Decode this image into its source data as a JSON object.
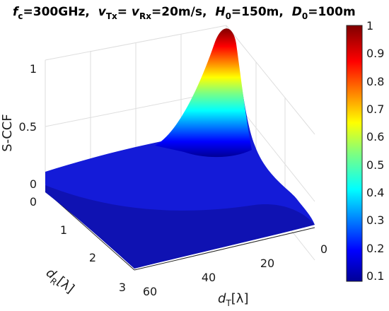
{
  "chart_data": {
    "type": "surface",
    "title": {
      "fc_sym": "f",
      "fc_sub": "c",
      "fc_val": "=300GHz,",
      "v_sym": "v",
      "vtx_sub": "Tx",
      "eq": "= ",
      "vrx_sub": "Rx",
      "v_val": "=20m/s,",
      "h_sym": "H",
      "h_sub": "0",
      "h_val": "=150m,",
      "d_sym": "D",
      "d_sub": "0",
      "d_val": "=100m"
    },
    "xlabel": {
      "sym": "d",
      "sub": "T",
      "unit": "[λ]"
    },
    "ylabel": {
      "sym": "d",
      "sub": "R",
      "unit": "[λ]"
    },
    "zlabel": "S-CCF",
    "x_ticks": [
      "0",
      "20",
      "40",
      "60"
    ],
    "y_ticks": [
      "0",
      "1",
      "2",
      "3"
    ],
    "z_ticks": [
      "0",
      "0.5",
      "1"
    ],
    "xlim": [
      0,
      60
    ],
    "ylim": [
      0,
      3
    ],
    "zlim": [
      0,
      1
    ],
    "grid": true,
    "colorbar": {
      "colormap": "jet",
      "range": [
        0.08,
        1
      ],
      "ticks": [
        "1",
        "0.9",
        "0.8",
        "0.7",
        "0.6",
        "0.5",
        "0.4",
        "0.3",
        "0.2",
        "0.1"
      ]
    },
    "surface_samples": {
      "x_dT": [
        0,
        10,
        20,
        30,
        40,
        50,
        60
      ],
      "y_dR": [
        0,
        1,
        2,
        3
      ],
      "z": [
        [
          1.0,
          0.36,
          0.17,
          0.12,
          0.1,
          0.1,
          0.12
        ],
        [
          0.2,
          0.14,
          0.11,
          0.1,
          0.1,
          0.09,
          0.09
        ],
        [
          0.1,
          0.09,
          0.09,
          0.08,
          0.09,
          0.09,
          0.08
        ],
        [
          0.08,
          0.08,
          0.08,
          0.08,
          0.08,
          0.08,
          0.08
        ]
      ]
    }
  }
}
